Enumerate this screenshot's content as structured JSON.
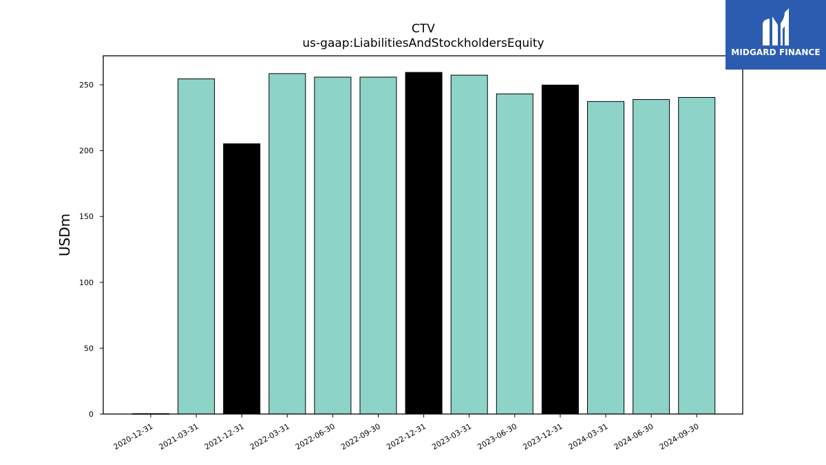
{
  "chart_data": {
    "type": "bar",
    "title": "CTV",
    "subtitle": "us-gaap:LiabilitiesAndStockholdersEquity",
    "ylabel": "USDm",
    "xlabel": "",
    "ylim": [
      0,
      272
    ],
    "yticks": [
      0,
      50,
      100,
      150,
      200,
      250
    ],
    "grid": false,
    "categories": [
      "2020-12-31",
      "2021-03-31",
      "2021-12-31",
      "2022-03-31",
      "2022-06-30",
      "2022-09-30",
      "2022-12-31",
      "2023-03-31",
      "2023-06-30",
      "2023-12-31",
      "2024-03-31",
      "2024-06-30",
      "2024-09-30"
    ],
    "values": [
      0.3,
      254.5,
      205.2,
      258.5,
      255.8,
      255.8,
      259.4,
      257.3,
      243.1,
      249.8,
      237.3,
      238.8,
      240.4
    ],
    "bar_colors": [
      "#8dd3c7",
      "#8dd3c7",
      "#000000",
      "#8dd3c7",
      "#8dd3c7",
      "#8dd3c7",
      "#000000",
      "#8dd3c7",
      "#8dd3c7",
      "#000000",
      "#8dd3c7",
      "#8dd3c7",
      "#8dd3c7"
    ]
  },
  "logo": {
    "text": "MIDGARD FINANCE",
    "background": "#2c5cb0",
    "icon": "midgard-logo-icon"
  }
}
